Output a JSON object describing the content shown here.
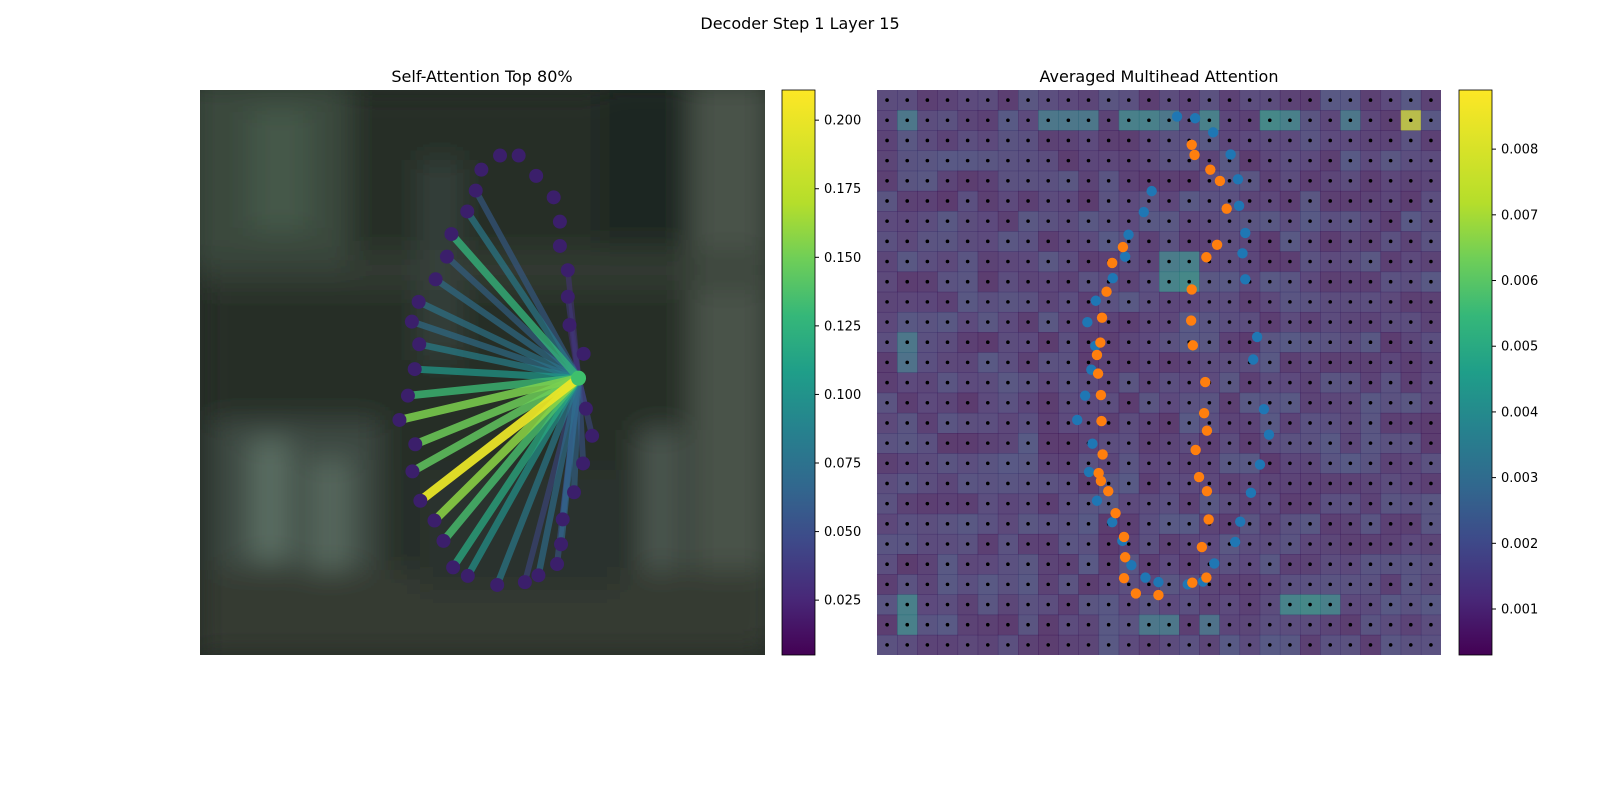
{
  "suptitle": "Decoder Step 1 Layer 15",
  "chart_data": [
    {
      "type": "scatter",
      "title": "Self-Attention Top 80%",
      "xlabel": "",
      "ylabel": "",
      "axes_visible": false,
      "background": "blurred photograph (dark green/grey scene)",
      "query_point": {
        "x": 0.67,
        "y": 0.51
      },
      "points": [
        {
          "x": 0.498,
          "y": 0.141
        },
        {
          "x": 0.531,
          "y": 0.116
        },
        {
          "x": 0.564,
          "y": 0.116
        },
        {
          "x": 0.595,
          "y": 0.152
        },
        {
          "x": 0.626,
          "y": 0.19
        },
        {
          "x": 0.637,
          "y": 0.233
        },
        {
          "x": 0.637,
          "y": 0.276
        },
        {
          "x": 0.651,
          "y": 0.319
        },
        {
          "x": 0.651,
          "y": 0.366
        },
        {
          "x": 0.654,
          "y": 0.416
        },
        {
          "x": 0.679,
          "y": 0.467
        },
        {
          "x": 0.683,
          "y": 0.564
        },
        {
          "x": 0.694,
          "y": 0.612
        },
        {
          "x": 0.678,
          "y": 0.661
        },
        {
          "x": 0.662,
          "y": 0.712
        },
        {
          "x": 0.642,
          "y": 0.76
        },
        {
          "x": 0.639,
          "y": 0.804
        },
        {
          "x": 0.632,
          "y": 0.839
        },
        {
          "x": 0.599,
          "y": 0.859
        },
        {
          "x": 0.575,
          "y": 0.871
        },
        {
          "x": 0.526,
          "y": 0.876
        },
        {
          "x": 0.474,
          "y": 0.86
        },
        {
          "x": 0.448,
          "y": 0.845
        },
        {
          "x": 0.431,
          "y": 0.798
        },
        {
          "x": 0.415,
          "y": 0.762
        },
        {
          "x": 0.39,
          "y": 0.727
        },
        {
          "x": 0.376,
          "y": 0.675
        },
        {
          "x": 0.381,
          "y": 0.627
        },
        {
          "x": 0.353,
          "y": 0.584
        },
        {
          "x": 0.368,
          "y": 0.541
        },
        {
          "x": 0.38,
          "y": 0.494
        },
        {
          "x": 0.388,
          "y": 0.45
        },
        {
          "x": 0.375,
          "y": 0.41
        },
        {
          "x": 0.387,
          "y": 0.375
        },
        {
          "x": 0.417,
          "y": 0.335
        },
        {
          "x": 0.437,
          "y": 0.295
        },
        {
          "x": 0.445,
          "y": 0.255
        },
        {
          "x": 0.473,
          "y": 0.215
        },
        {
          "x": 0.488,
          "y": 0.178
        }
      ],
      "edges": [
        {
          "to": 9,
          "w": 0.03
        },
        {
          "to": 8,
          "w": 0.04
        },
        {
          "to": 7,
          "w": 0.035
        },
        {
          "to": 11,
          "w": 0.045
        },
        {
          "to": 12,
          "w": 0.05
        },
        {
          "to": 13,
          "w": 0.06
        },
        {
          "to": 14,
          "w": 0.07
        },
        {
          "to": 15,
          "w": 0.06
        },
        {
          "to": 16,
          "w": 0.075
        },
        {
          "to": 17,
          "w": 0.06
        },
        {
          "to": 18,
          "w": 0.08
        },
        {
          "to": 19,
          "w": 0.05
        },
        {
          "to": 20,
          "w": 0.09
        },
        {
          "to": 21,
          "w": 0.11
        },
        {
          "to": 22,
          "w": 0.13
        },
        {
          "to": 23,
          "w": 0.15
        },
        {
          "to": 24,
          "w": 0.175
        },
        {
          "to": 25,
          "w": 0.205
        },
        {
          "to": 26,
          "w": 0.16
        },
        {
          "to": 27,
          "w": 0.165
        },
        {
          "to": 28,
          "w": 0.17
        },
        {
          "to": 29,
          "w": 0.145
        },
        {
          "to": 30,
          "w": 0.115
        },
        {
          "to": 31,
          "w": 0.095
        },
        {
          "to": 32,
          "w": 0.08
        },
        {
          "to": 33,
          "w": 0.085
        },
        {
          "to": 34,
          "w": 0.08
        },
        {
          "to": 35,
          "w": 0.07
        },
        {
          "to": 36,
          "w": 0.14
        },
        {
          "to": 37,
          "w": 0.09
        },
        {
          "to": 38,
          "w": 0.065
        }
      ],
      "colorbar": {
        "min": 0.005,
        "max": 0.211,
        "ticks": [
          "0.025",
          "0.050",
          "0.075",
          "0.100",
          "0.125",
          "0.150",
          "0.175",
          "0.200"
        ],
        "tick_values": [
          0.025,
          0.05,
          0.075,
          0.1,
          0.125,
          0.15,
          0.175,
          0.2
        ],
        "colormap": "viridis"
      }
    },
    {
      "type": "heatmap",
      "title": "Averaged Multihead Attention",
      "xlabel": "",
      "ylabel": "",
      "axes_visible": false,
      "grid_size": [
        28,
        28
      ],
      "grid_dots": true,
      "colorbar": {
        "min": 0.0003,
        "max": 0.0089,
        "ticks": [
          "0.001",
          "0.002",
          "0.003",
          "0.004",
          "0.005",
          "0.006",
          "0.007",
          "0.008"
        ],
        "tick_values": [
          0.001,
          0.002,
          0.003,
          0.004,
          0.005,
          0.006,
          0.007,
          0.008
        ],
        "colormap": "viridis"
      },
      "hot_cells": [
        {
          "col": 26,
          "row": 1,
          "v": 0.0085
        },
        {
          "col": 1,
          "row": 1,
          "v": 0.0035
        },
        {
          "col": 8,
          "row": 1,
          "v": 0.0035
        },
        {
          "col": 9,
          "row": 1,
          "v": 0.0035
        },
        {
          "col": 10,
          "row": 1,
          "v": 0.0035
        },
        {
          "col": 12,
          "row": 1,
          "v": 0.004
        },
        {
          "col": 13,
          "row": 1,
          "v": 0.004
        },
        {
          "col": 14,
          "row": 1,
          "v": 0.0035
        },
        {
          "col": 16,
          "row": 1,
          "v": 0.004
        },
        {
          "col": 19,
          "row": 1,
          "v": 0.0045
        },
        {
          "col": 20,
          "row": 1,
          "v": 0.004
        },
        {
          "col": 23,
          "row": 1,
          "v": 0.0035
        },
        {
          "col": 14,
          "row": 9,
          "v": 0.0042
        },
        {
          "col": 15,
          "row": 9,
          "v": 0.0045
        },
        {
          "col": 14,
          "row": 8,
          "v": 0.0038
        },
        {
          "col": 15,
          "row": 8,
          "v": 0.004
        },
        {
          "col": 1,
          "row": 12,
          "v": 0.0035
        },
        {
          "col": 1,
          "row": 13,
          "v": 0.0032
        },
        {
          "col": 1,
          "row": 25,
          "v": 0.004
        },
        {
          "col": 1,
          "row": 26,
          "v": 0.004
        },
        {
          "col": 20,
          "row": 25,
          "v": 0.0042
        },
        {
          "col": 21,
          "row": 25,
          "v": 0.0045
        },
        {
          "col": 22,
          "row": 25,
          "v": 0.004
        },
        {
          "col": 13,
          "row": 26,
          "v": 0.0035
        },
        {
          "col": 14,
          "row": 26,
          "v": 0.0035
        },
        {
          "col": 16,
          "row": 26,
          "v": 0.0032
        }
      ],
      "series": [
        {
          "name": "",
          "color": "#1f77b4",
          "points": [
            {
              "x": 0.532,
              "y": 0.047
            },
            {
              "x": 0.564,
              "y": 0.05
            },
            {
              "x": 0.596,
              "y": 0.075
            },
            {
              "x": 0.627,
              "y": 0.114
            },
            {
              "x": 0.64,
              "y": 0.158
            },
            {
              "x": 0.642,
              "y": 0.205
            },
            {
              "x": 0.653,
              "y": 0.253
            },
            {
              "x": 0.648,
              "y": 0.289
            },
            {
              "x": 0.653,
              "y": 0.335
            },
            {
              "x": 0.674,
              "y": 0.437
            },
            {
              "x": 0.667,
              "y": 0.477
            },
            {
              "x": 0.686,
              "y": 0.565
            },
            {
              "x": 0.695,
              "y": 0.61
            },
            {
              "x": 0.679,
              "y": 0.663
            },
            {
              "x": 0.663,
              "y": 0.713
            },
            {
              "x": 0.644,
              "y": 0.764
            },
            {
              "x": 0.635,
              "y": 0.8
            },
            {
              "x": 0.598,
              "y": 0.838
            },
            {
              "x": 0.578,
              "y": 0.87
            },
            {
              "x": 0.551,
              "y": 0.875
            },
            {
              "x": 0.499,
              "y": 0.871
            },
            {
              "x": 0.476,
              "y": 0.863
            },
            {
              "x": 0.451,
              "y": 0.841
            },
            {
              "x": 0.435,
              "y": 0.798
            },
            {
              "x": 0.417,
              "y": 0.765
            },
            {
              "x": 0.39,
              "y": 0.727
            },
            {
              "x": 0.376,
              "y": 0.676
            },
            {
              "x": 0.382,
              "y": 0.626
            },
            {
              "x": 0.355,
              "y": 0.584
            },
            {
              "x": 0.369,
              "y": 0.541
            },
            {
              "x": 0.38,
              "y": 0.495
            },
            {
              "x": 0.387,
              "y": 0.453
            },
            {
              "x": 0.373,
              "y": 0.411
            },
            {
              "x": 0.388,
              "y": 0.373
            },
            {
              "x": 0.418,
              "y": 0.333
            },
            {
              "x": 0.44,
              "y": 0.295
            },
            {
              "x": 0.446,
              "y": 0.256
            },
            {
              "x": 0.473,
              "y": 0.216
            },
            {
              "x": 0.487,
              "y": 0.179
            }
          ]
        },
        {
          "name": "",
          "color": "#ff7f0e",
          "points": [
            {
              "x": 0.558,
              "y": 0.097
            },
            {
              "x": 0.563,
              "y": 0.115
            },
            {
              "x": 0.591,
              "y": 0.141
            },
            {
              "x": 0.608,
              "y": 0.161
            },
            {
              "x": 0.62,
              "y": 0.21
            },
            {
              "x": 0.603,
              "y": 0.274
            },
            {
              "x": 0.584,
              "y": 0.296
            },
            {
              "x": 0.558,
              "y": 0.353
            },
            {
              "x": 0.557,
              "y": 0.408
            },
            {
              "x": 0.56,
              "y": 0.452
            },
            {
              "x": 0.582,
              "y": 0.517
            },
            {
              "x": 0.58,
              "y": 0.572
            },
            {
              "x": 0.585,
              "y": 0.603
            },
            {
              "x": 0.565,
              "y": 0.637
            },
            {
              "x": 0.571,
              "y": 0.685
            },
            {
              "x": 0.585,
              "y": 0.71
            },
            {
              "x": 0.588,
              "y": 0.76
            },
            {
              "x": 0.576,
              "y": 0.809
            },
            {
              "x": 0.584,
              "y": 0.863
            },
            {
              "x": 0.559,
              "y": 0.872
            },
            {
              "x": 0.499,
              "y": 0.894
            },
            {
              "x": 0.459,
              "y": 0.891
            },
            {
              "x": 0.438,
              "y": 0.864
            },
            {
              "x": 0.44,
              "y": 0.827
            },
            {
              "x": 0.438,
              "y": 0.791
            },
            {
              "x": 0.423,
              "y": 0.749
            },
            {
              "x": 0.41,
              "y": 0.71
            },
            {
              "x": 0.397,
              "y": 0.692
            },
            {
              "x": 0.393,
              "y": 0.678
            },
            {
              "x": 0.4,
              "y": 0.645
            },
            {
              "x": 0.398,
              "y": 0.586
            },
            {
              "x": 0.397,
              "y": 0.54
            },
            {
              "x": 0.392,
              "y": 0.502
            },
            {
              "x": 0.39,
              "y": 0.469
            },
            {
              "x": 0.396,
              "y": 0.447
            },
            {
              "x": 0.399,
              "y": 0.403
            },
            {
              "x": 0.407,
              "y": 0.357
            },
            {
              "x": 0.417,
              "y": 0.306
            },
            {
              "x": 0.436,
              "y": 0.278
            }
          ]
        }
      ]
    }
  ]
}
